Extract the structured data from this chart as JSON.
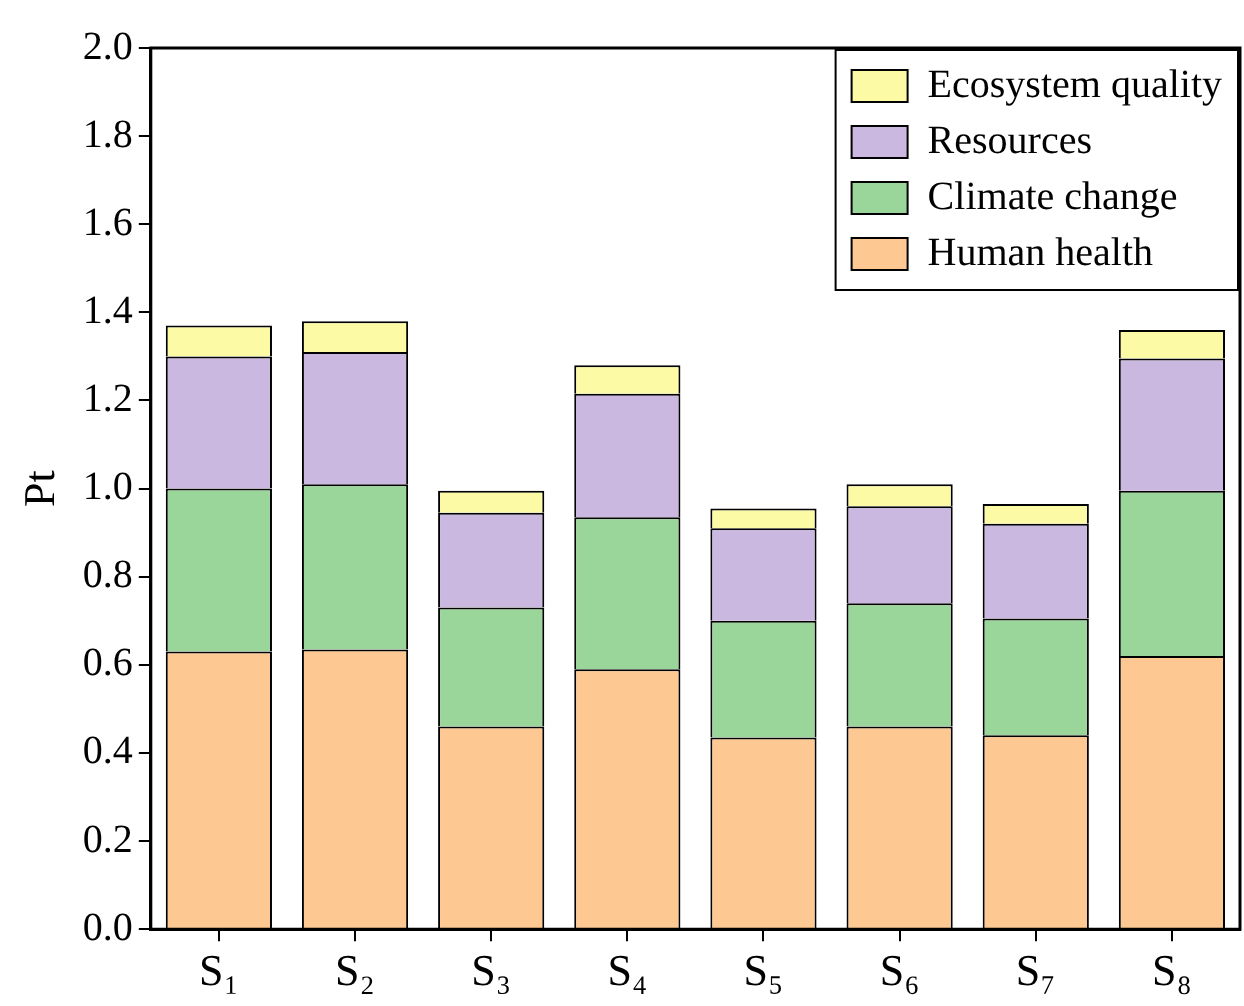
{
  "chart_data": {
    "type": "bar",
    "stacked": true,
    "ylabel": "Pt",
    "categories": [
      "S₁",
      "S₂",
      "S₃",
      "S₄",
      "S₅",
      "S₆",
      "S₇",
      "S₈"
    ],
    "series": [
      {
        "name": "Human health",
        "color": "#fdc891",
        "values": [
          0.63,
          0.635,
          0.46,
          0.59,
          0.435,
          0.46,
          0.44,
          0.62
        ]
      },
      {
        "name": "Climate change",
        "color": "#9ad69a",
        "values": [
          0.37,
          0.375,
          0.27,
          0.345,
          0.265,
          0.28,
          0.265,
          0.375
        ]
      },
      {
        "name": "Resources",
        "color": "#cbb8e0",
        "values": [
          0.3,
          0.3,
          0.215,
          0.28,
          0.21,
          0.22,
          0.215,
          0.3
        ]
      },
      {
        "name": "Ecosystem quality",
        "color": "#fdfaa5",
        "values": [
          0.07,
          0.07,
          0.05,
          0.065,
          0.045,
          0.05,
          0.045,
          0.065
        ]
      }
    ],
    "ylim": [
      0,
      2
    ],
    "yticks": [
      {
        "value": 0,
        "label": "0.0"
      },
      0.2,
      0.4,
      0.6,
      0.8,
      {
        "value": 1,
        "label": "1.0"
      },
      1.2,
      1.4,
      1.6,
      1.8,
      {
        "value": 2,
        "label": "2.0"
      }
    ],
    "grid": false,
    "legend": "top right"
  }
}
